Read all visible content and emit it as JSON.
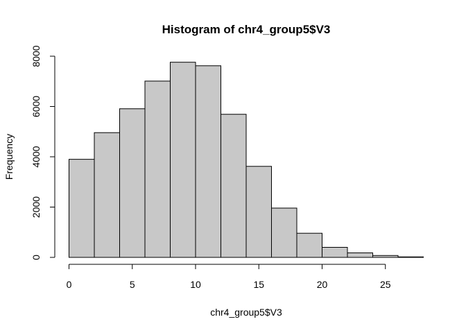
{
  "chart_data": {
    "type": "bar",
    "title": "Histogram of chr4_group5$V3",
    "xlabel": "chr4_group5$V3",
    "ylabel": "Frequency",
    "bin_edges": [
      0,
      2,
      4,
      6,
      8,
      10,
      12,
      14,
      16,
      18,
      20,
      22,
      24,
      26,
      28
    ],
    "values": [
      3900,
      4960,
      5910,
      7010,
      7760,
      7620,
      5690,
      3620,
      1960,
      960,
      400,
      180,
      75,
      20
    ],
    "xlim": [
      0,
      28
    ],
    "ylim": [
      0,
      8000
    ],
    "x_ticks": [
      0,
      5,
      10,
      15,
      20,
      25
    ],
    "y_ticks": [
      0,
      2000,
      4000,
      6000,
      8000
    ],
    "bar_fill": "#c8c8c8",
    "bar_stroke": "#000000",
    "grid": false,
    "legend": "none"
  }
}
